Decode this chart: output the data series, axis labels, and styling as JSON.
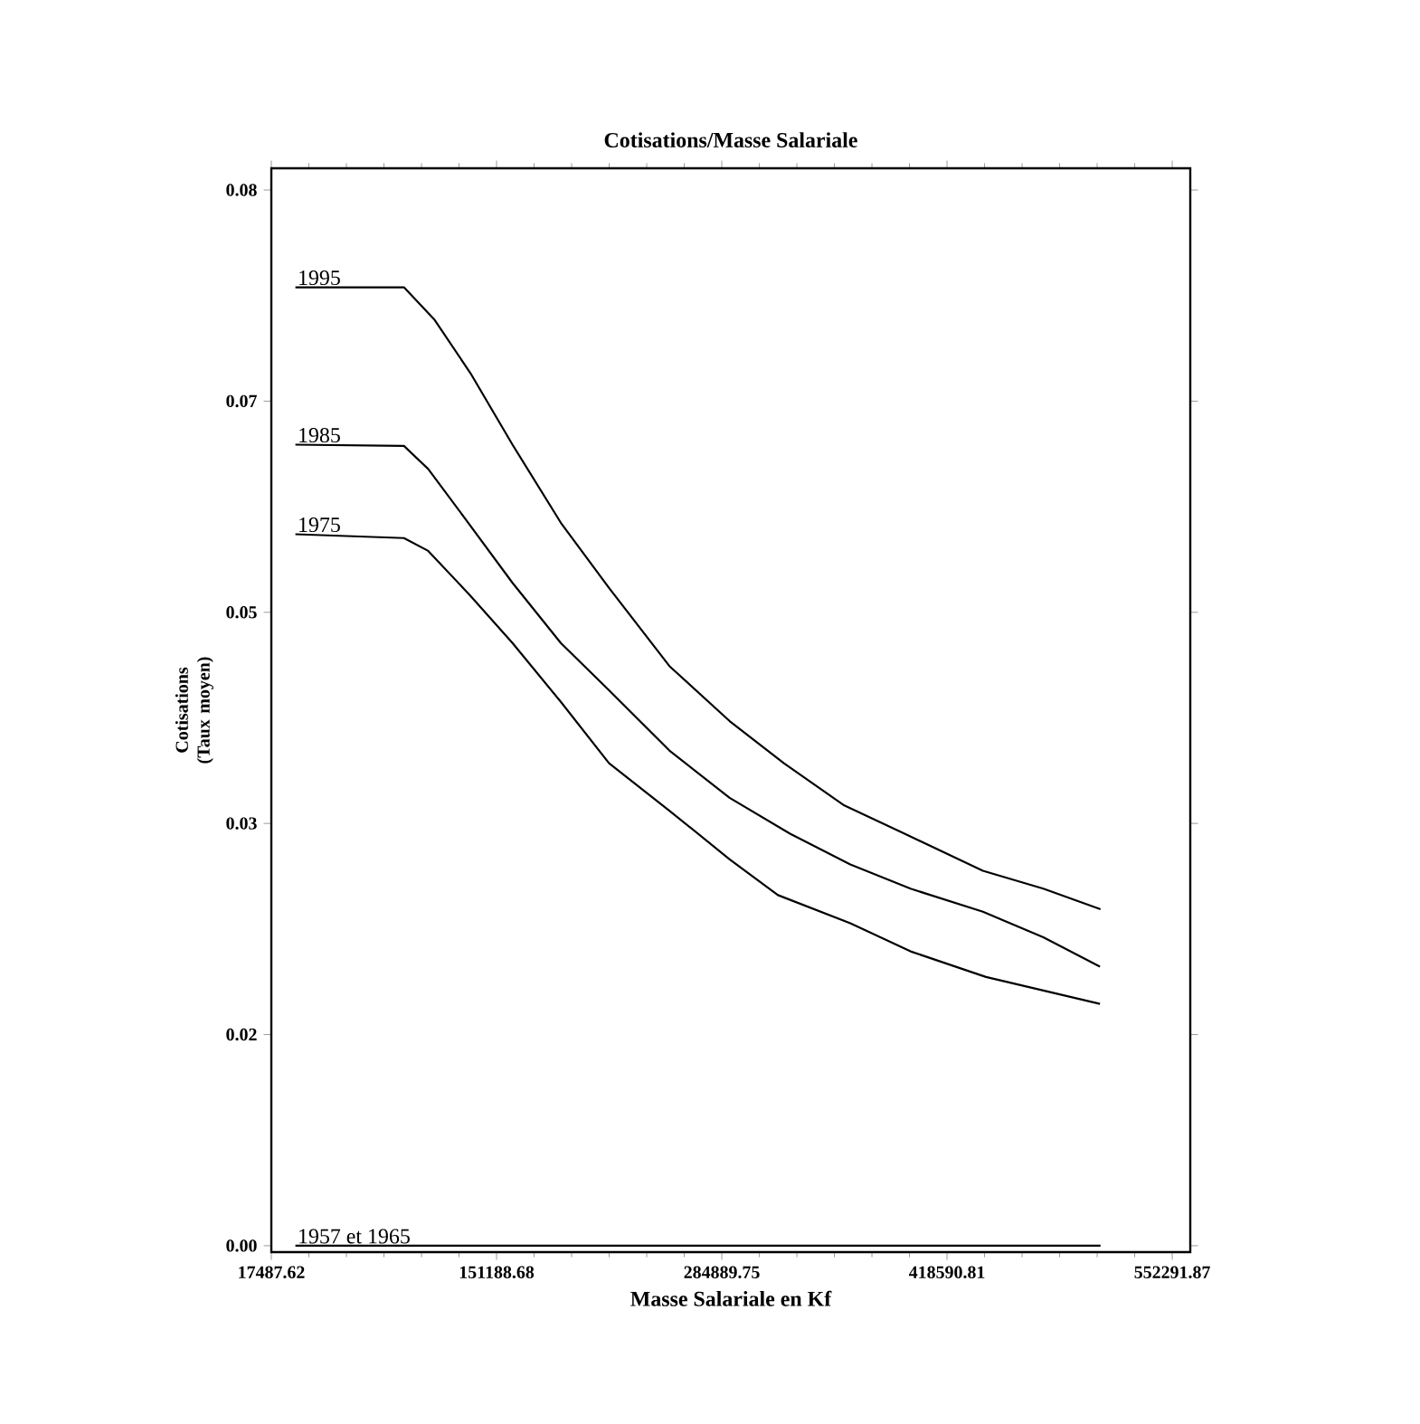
{
  "chart_data": {
    "type": "line",
    "title": "Cotisations/Masse Salariale",
    "xlabel": "Masse Salariale en Kf",
    "ylabel": "Cotisations (Taux moyen)",
    "xlim": [
      17487.62,
      563000
    ],
    "ylim": [
      -0.0005,
      0.0842
    ],
    "xticks": [
      17487.62,
      151188.68,
      284889.75,
      418590.81,
      552291.87
    ],
    "yticks": [
      {
        "value": 0,
        "label": "0.00"
      },
      {
        "value": 0.0165,
        "label": "0.02"
      },
      {
        "value": 0.033,
        "label": "0.03"
      },
      {
        "value": 0.0495,
        "label": "0.05"
      },
      {
        "value": 0.066,
        "label": "0.07"
      },
      {
        "value": 0.0825,
        "label": "0.08"
      }
    ],
    "marker": "none",
    "line_style": "solid",
    "series": [
      {
        "name": "1995",
        "color": "#000000",
        "x": [
          31770,
          96210,
          114150,
          135630,
          160650,
          189330,
          217960,
          253770,
          289540,
          321760,
          357630,
          393390,
          439900,
          475770,
          509700
        ],
        "values": [
          0.0749,
          0.0749,
          0.0724,
          0.0682,
          0.0626,
          0.0565,
          0.0514,
          0.0453,
          0.041,
          0.0377,
          0.0344,
          0.0322,
          0.0293,
          0.0279,
          0.0263
        ]
      },
      {
        "name": "1985",
        "color": "#000000",
        "x": [
          31770,
          96210,
          110600,
          132080,
          160650,
          189330,
          217960,
          253770,
          289540,
          325400,
          361170,
          396940,
          439900,
          475770,
          509400
        ],
        "values": [
          0.0626,
          0.0625,
          0.0607,
          0.0569,
          0.0518,
          0.0471,
          0.0434,
          0.0387,
          0.035,
          0.0322,
          0.0298,
          0.0279,
          0.0261,
          0.0241,
          0.0218
        ]
      },
      {
        "name": "1975",
        "color": "#000000",
        "x": [
          31770,
          96210,
          110600,
          135630,
          160650,
          189330,
          217960,
          253770,
          289540,
          318210,
          361170,
          396940,
          441720,
          509400
        ],
        "values": [
          0.0556,
          0.0553,
          0.0543,
          0.0508,
          0.0471,
          0.0425,
          0.0377,
          0.034,
          0.0302,
          0.0274,
          0.0252,
          0.023,
          0.021,
          0.0189
        ]
      },
      {
        "name": "1957 et 1965",
        "color": "#000000",
        "x": [
          31770,
          509700
        ],
        "values": [
          0,
          0
        ]
      }
    ]
  }
}
